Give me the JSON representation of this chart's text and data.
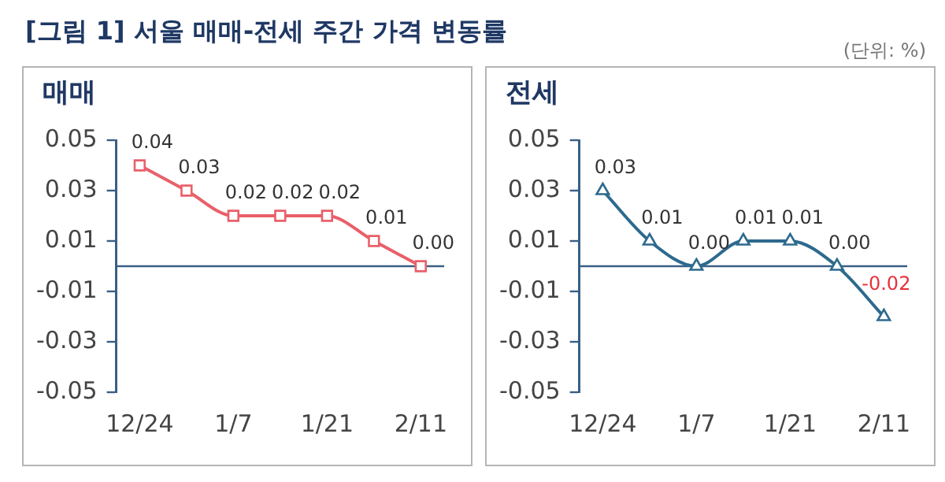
{
  "chart_data": [
    {
      "type": "line",
      "title": "매매",
      "annotations": [
        "[그림 1] 서울 매매-전세 주간 가격 변동률",
        "(단위: %)"
      ],
      "categories": [
        "12/24",
        null,
        "1/7",
        null,
        "1/21",
        null,
        "2/11"
      ],
      "series": [
        {
          "color": "#e8606a",
          "values": [
            0.04,
            0.03,
            0.02,
            0.02,
            0.02,
            0.01,
            0.0
          ],
          "value_labels": [
            "0.04",
            "0.03",
            "0.02",
            "0.02",
            "0.02",
            "0.01",
            "0.00"
          ]
        }
      ],
      "ylim": [
        -0.05,
        0.05
      ],
      "yticks": [
        {
          "value": -0.05,
          "label": "-0.05"
        },
        {
          "value": -0.03,
          "label": "-0.03"
        },
        {
          "value": -0.01,
          "label": "-0.01"
        },
        {
          "value": 0.01,
          "label": "0.01"
        },
        {
          "value": 0.03,
          "label": "0.03"
        },
        {
          "value": 0.05,
          "label": "0.05"
        }
      ],
      "ref_lines": [
        {
          "axis": "y",
          "value": 0,
          "color": "#3a5f85"
        }
      ],
      "grid": false,
      "legend": false,
      "marker": "square",
      "line_style": "solid"
    },
    {
      "type": "line",
      "title": "전세",
      "categories": [
        "12/24",
        null,
        "1/7",
        null,
        "1/21",
        null,
        "2/11"
      ],
      "series": [
        {
          "color": "#2d6a8e",
          "values": [
            0.03,
            0.01,
            0.0,
            0.01,
            0.01,
            0.0,
            -0.02
          ],
          "value_labels": [
            "0.03",
            "0.01",
            "0.00",
            "0.01",
            "0.01",
            "0.00",
            "-0.02"
          ]
        }
      ],
      "ylim": [
        -0.05,
        0.05
      ],
      "yticks": [
        {
          "value": -0.05,
          "label": "-0.05"
        },
        {
          "value": -0.03,
          "label": "-0.03"
        },
        {
          "value": -0.01,
          "label": "-0.01"
        },
        {
          "value": 0.01,
          "label": "0.01"
        },
        {
          "value": 0.03,
          "label": "0.03"
        },
        {
          "value": 0.05,
          "label": "0.05"
        }
      ],
      "ref_lines": [
        {
          "axis": "y",
          "value": 0,
          "color": "#3a5f85"
        }
      ],
      "grid": false,
      "legend": false,
      "marker": "triangle",
      "line_style": "solid"
    }
  ]
}
